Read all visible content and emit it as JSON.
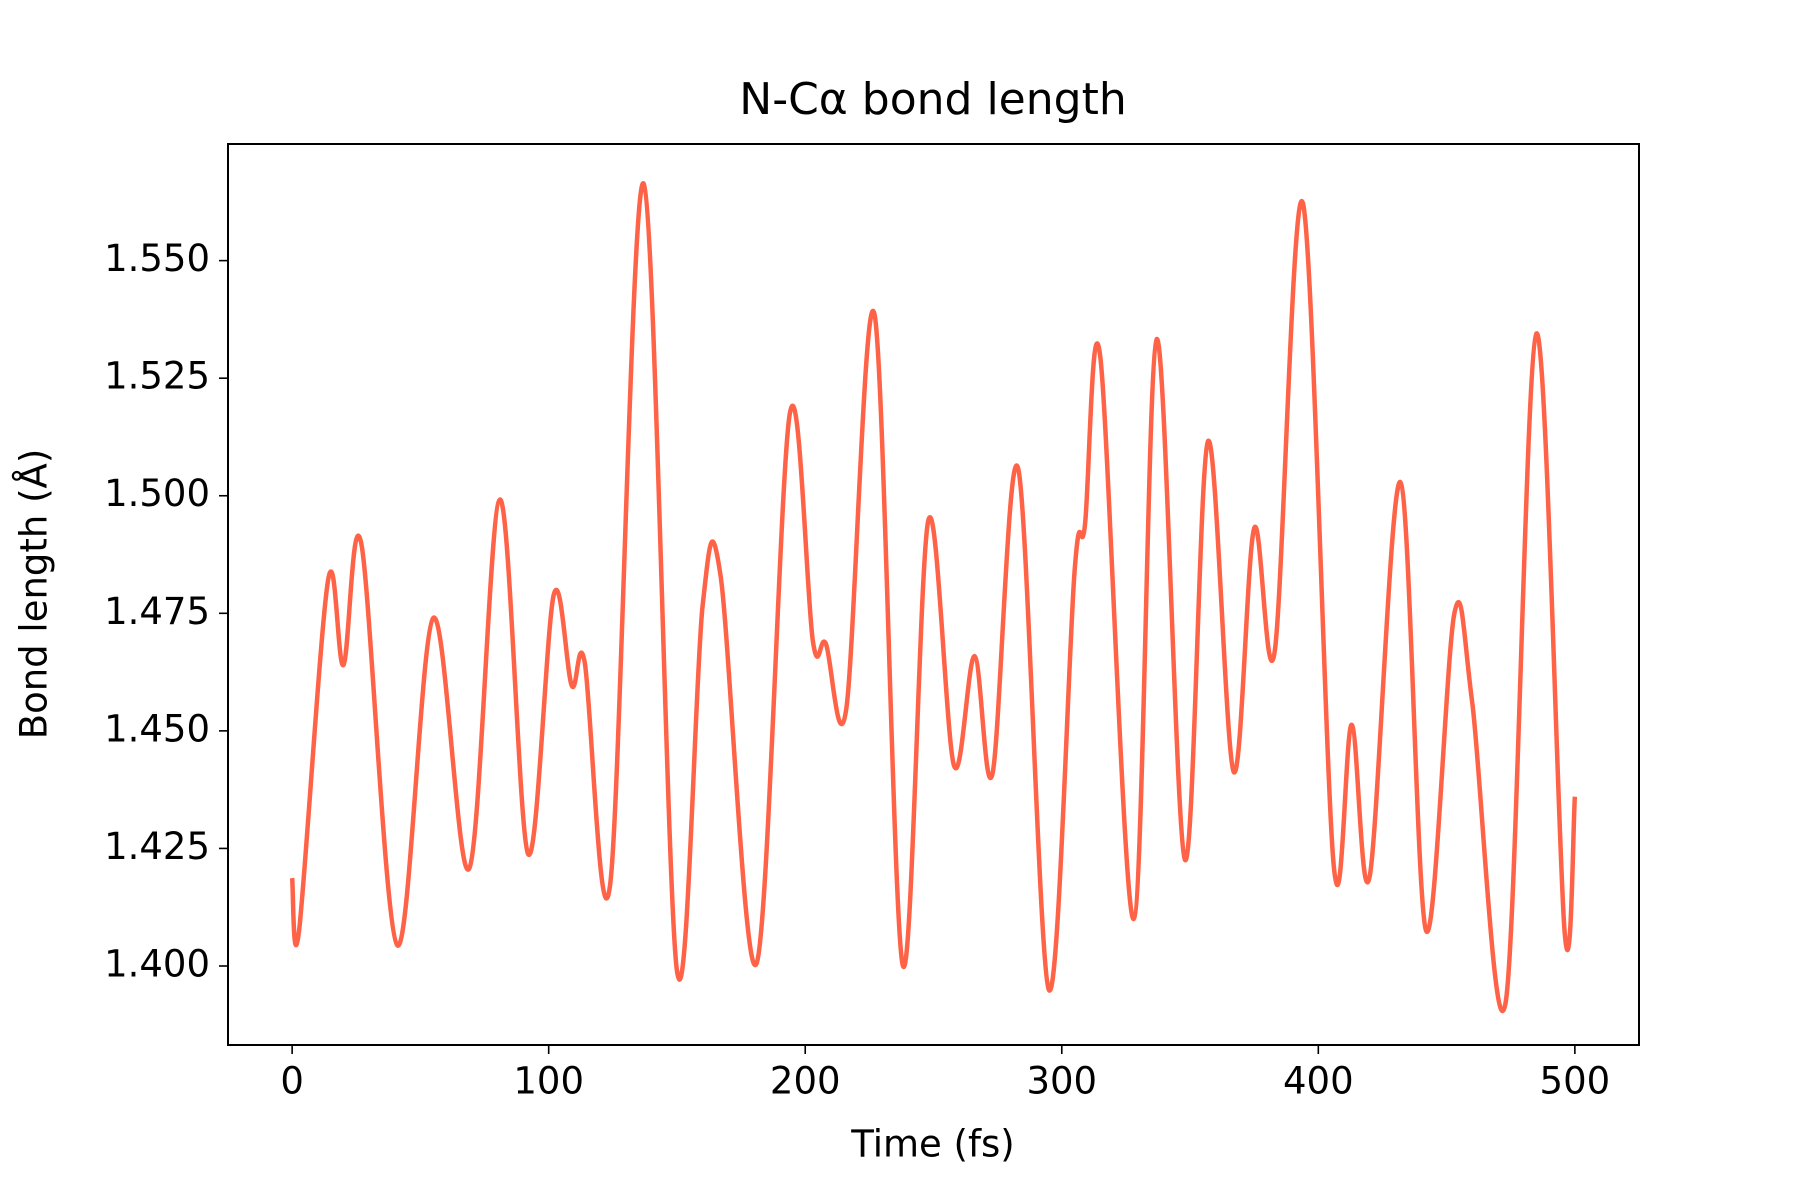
{
  "chart_data": {
    "type": "line",
    "title": "N-Cα bond length",
    "x_label": "Time (fs)",
    "y_label": "Bond length (Å)",
    "x": [
      0,
      2.7,
      14,
      20,
      27,
      41,
      55,
      69,
      81,
      92,
      102,
      109,
      114,
      124,
      137,
      150,
      160,
      167,
      181,
      194,
      203,
      208,
      216,
      227,
      238,
      248,
      258,
      266,
      273,
      283,
      295,
      305,
      309,
      315,
      328,
      337,
      348,
      357,
      367,
      375,
      383,
      394,
      406,
      413,
      420,
      432,
      442,
      453,
      460,
      473,
      485,
      496,
      500
    ],
    "series": [
      {
        "name": "N-Cα",
        "color": "#ff6347",
        "values": [
          1.4187,
          1.4075,
          1.482,
          1.464,
          1.4897,
          1.4044,
          1.474,
          1.4207,
          1.4992,
          1.4238,
          1.479,
          1.4596,
          1.4647,
          1.4175,
          1.5664,
          1.399,
          1.4766,
          1.483,
          1.4005,
          1.5175,
          1.469,
          1.4686,
          1.4547,
          1.5386,
          1.4002,
          1.4948,
          1.4426,
          1.4659,
          1.4409,
          1.5058,
          1.3949,
          1.484,
          1.4936,
          1.5296,
          1.41,
          1.5333,
          1.4226,
          1.5116,
          1.4413,
          1.4931,
          1.4669,
          1.5622,
          1.4214,
          1.4513,
          1.419,
          1.5029,
          1.4075,
          1.4749,
          1.456,
          1.3922,
          1.5345,
          1.4073,
          1.436
        ]
      }
    ],
    "xlim": [
      -25,
      525
    ],
    "xticks": [
      0,
      100,
      200,
      300,
      400,
      500
    ],
    "ylim": [
      1.3832,
      1.5748
    ],
    "yticks": [
      {
        "value": 1.4,
        "label": "1.400"
      },
      {
        "value": 1.425,
        "label": "1.425"
      },
      {
        "value": 1.45,
        "label": "1.450"
      },
      {
        "value": 1.475,
        "label": "1.475"
      },
      {
        "value": 1.5,
        "label": "1.500"
      },
      {
        "value": 1.525,
        "label": "1.525"
      },
      {
        "value": 1.55,
        "label": "1.550"
      }
    ],
    "grid": false
  }
}
